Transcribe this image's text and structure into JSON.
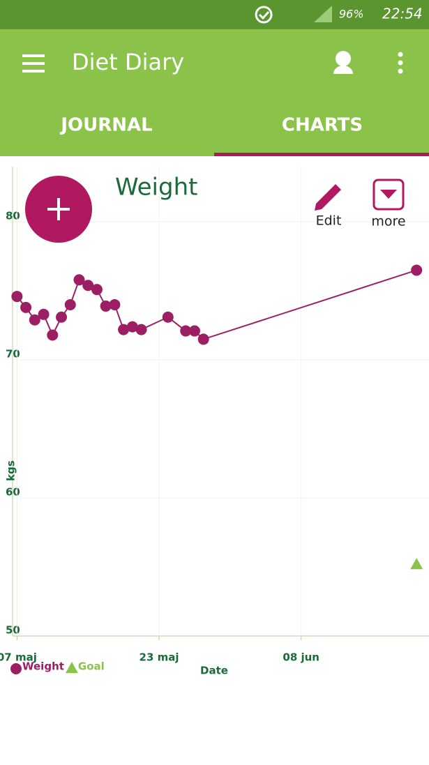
{
  "status_bar": {
    "battery": "96%",
    "time": "22:54"
  },
  "app_bar": {
    "title": "Diet Diary",
    "tabs": [
      "JOURNAL",
      "CHARTS"
    ]
  },
  "chart_actions": [
    "Edit",
    "more"
  ],
  "chart_data": {
    "type": "line",
    "title": "Weight",
    "x_label": "Date",
    "y_label": "kgs",
    "x": [
      0,
      1,
      2,
      3,
      4,
      5,
      6,
      7,
      8,
      9,
      10,
      11,
      12,
      13,
      14,
      17,
      19,
      20,
      21,
      45
    ],
    "xlim": [
      -0.5,
      46.4
    ],
    "xticks": [
      {
        "value": 0,
        "label": "07 maj"
      },
      {
        "value": 16,
        "label": "23 maj"
      },
      {
        "value": 32,
        "label": "08 jun"
      }
    ],
    "ylim": [
      50,
      84
    ],
    "yticks": [
      50,
      60,
      70,
      80
    ],
    "grid": true,
    "series": [
      {
        "name": "Weight",
        "color": "#9c1f63",
        "marker": "circle",
        "line": true,
        "values": [
          74.6,
          73.8,
          72.9,
          73.3,
          71.8,
          73.1,
          74.0,
          75.8,
          75.4,
          75.1,
          73.9,
          74.0,
          72.2,
          72.4,
          72.2,
          73.1,
          72.1,
          72.1,
          71.5,
          76.5
        ]
      },
      {
        "name": "Goal",
        "color": "#8bc34a",
        "marker": "triangle",
        "line": false,
        "values": [
          null,
          null,
          null,
          null,
          null,
          null,
          null,
          null,
          null,
          null,
          null,
          null,
          null,
          null,
          null,
          null,
          null,
          null,
          null,
          55.2
        ]
      }
    ]
  }
}
